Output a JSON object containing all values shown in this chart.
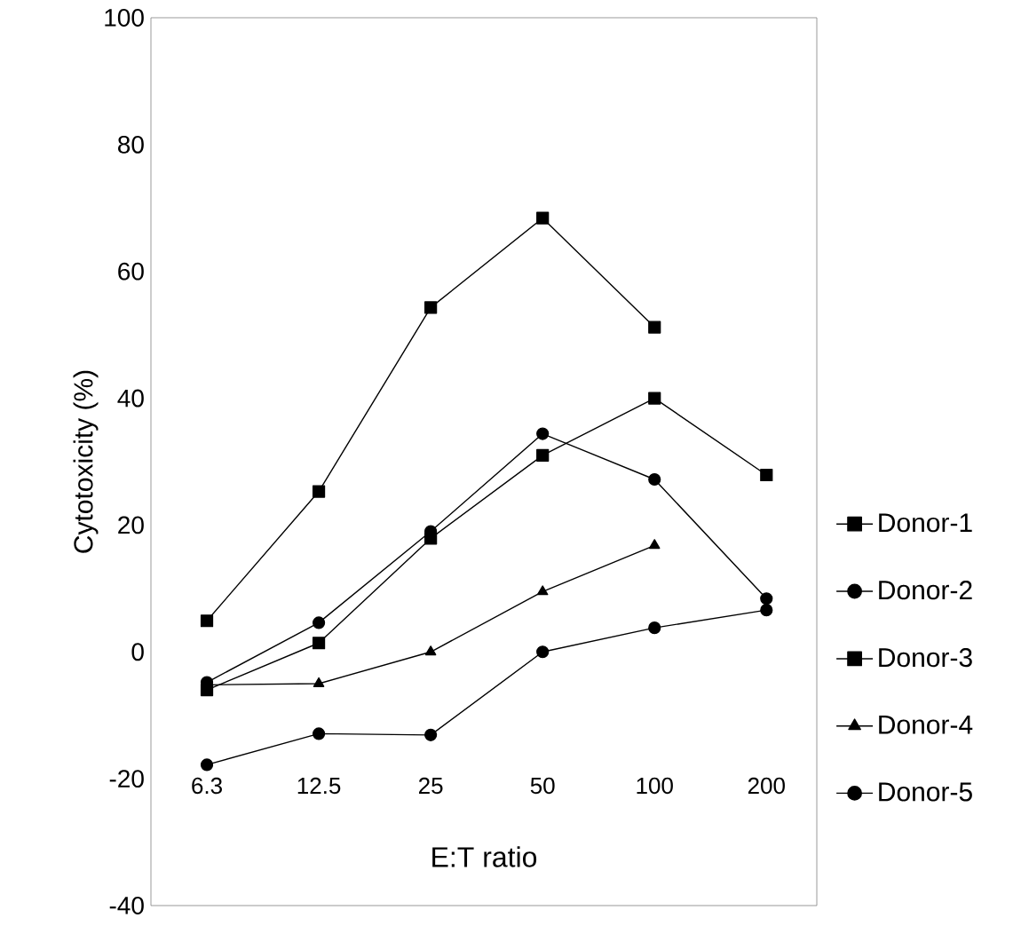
{
  "chart_data": {
    "type": "line",
    "xlabel": "E:T ratio",
    "ylabel": "Cytotoxicity (%)",
    "categories": [
      "6.3",
      "12.5",
      "25",
      "50",
      "100",
      "200"
    ],
    "ylim": [
      -40,
      100
    ],
    "yticks": [
      -40,
      -20,
      0,
      20,
      40,
      60,
      80,
      100
    ],
    "grid": false,
    "legend": "right",
    "line_style": "solid",
    "series": [
      {
        "name": "Donor-1",
        "color": "#000000",
        "marker": "square",
        "values": [
          -6,
          1.4,
          17.9,
          31,
          40,
          27.9
        ]
      },
      {
        "name": "Donor-2",
        "color": "#000000",
        "marker": "circle",
        "values": [
          -17.8,
          -12.9,
          -13.1,
          0,
          3.8,
          6.6
        ]
      },
      {
        "name": "Donor-3",
        "color": "#000000",
        "marker": "square",
        "values": [
          4.9,
          25.3,
          54.3,
          68.4,
          51.2,
          null
        ]
      },
      {
        "name": "Donor-4",
        "color": "#000000",
        "marker": "triangle",
        "values": [
          -5.2,
          -5,
          0,
          9.5,
          16.8,
          null
        ]
      },
      {
        "name": "Donor-5",
        "color": "#000000",
        "marker": "circle",
        "values": [
          -4.8,
          4.6,
          19,
          34.4,
          27.2,
          8.4
        ]
      }
    ]
  }
}
